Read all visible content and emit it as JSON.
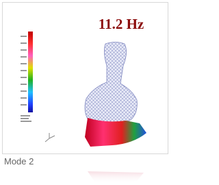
{
  "image": {
    "label": "11.2 Hz"
  },
  "caption": "Mode 2"
}
